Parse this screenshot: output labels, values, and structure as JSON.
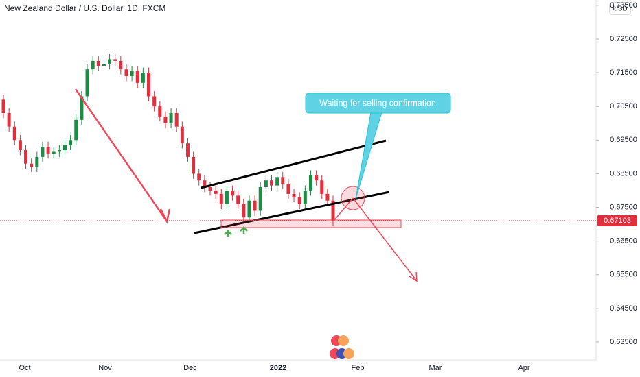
{
  "chart_data": {
    "type": "candlestick",
    "title": "New Zealand Dollar / U.S. Dollar, 1D, FXCM",
    "currency": "USD",
    "annotation": "Waiting for selling confirmation",
    "last_price": {
      "value": 0.67103,
      "label": "0.67103"
    },
    "up_color": "#1e8c45",
    "down_color": "#e0303e",
    "ylim": [
      0.6297,
      0.7366
    ],
    "yticks": [
      {
        "value": 0.635,
        "label": "0.63500"
      },
      {
        "value": 0.645,
        "label": "0.64500"
      },
      {
        "value": 0.655,
        "label": "0.65500"
      },
      {
        "value": 0.665,
        "label": "0.66500"
      },
      {
        "value": 0.675,
        "label": "0.67500"
      },
      {
        "value": 0.685,
        "label": "0.68500"
      },
      {
        "value": 0.695,
        "label": "0.69500"
      },
      {
        "value": 0.705,
        "label": "0.70500"
      },
      {
        "value": 0.715,
        "label": "0.71500"
      },
      {
        "value": 0.725,
        "label": "0.72500"
      },
      {
        "value": 0.735,
        "label": "0.73500"
      }
    ],
    "xtick_labels": [
      "Oct",
      "Nov",
      "Dec",
      "2022",
      "Feb",
      "Mar",
      "Apr"
    ],
    "open": [
      0.707,
      0.703,
      0.699,
      0.695,
      0.692,
      0.688,
      0.687,
      0.69,
      0.693,
      0.691,
      0.6915,
      0.692,
      0.6935,
      0.695,
      0.701,
      0.708,
      0.716,
      0.7185,
      0.717,
      0.7175,
      0.719,
      0.7185,
      0.716,
      0.714,
      0.7155,
      0.712,
      0.715,
      0.708,
      0.705,
      0.702,
      0.7,
      0.703,
      0.699,
      0.694,
      0.69,
      0.685,
      0.683,
      0.681,
      0.68,
      0.679,
      0.676,
      0.68,
      0.6785,
      0.676,
      0.672,
      0.677,
      0.674,
      0.681,
      0.683,
      0.6815,
      0.684,
      0.682,
      0.679,
      0.678,
      0.676,
      0.68,
      0.6845,
      0.683,
      0.679,
      0.677
    ],
    "high": [
      0.7085,
      0.7045,
      0.7005,
      0.6965,
      0.6935,
      0.6895,
      0.6915,
      0.6945,
      0.6945,
      0.693,
      0.6935,
      0.695,
      0.6965,
      0.7025,
      0.7095,
      0.7175,
      0.72,
      0.72,
      0.719,
      0.7205,
      0.7205,
      0.72,
      0.7175,
      0.717,
      0.717,
      0.7165,
      0.7165,
      0.7095,
      0.7065,
      0.7035,
      0.7045,
      0.7045,
      0.7005,
      0.6955,
      0.6915,
      0.6865,
      0.6845,
      0.6825,
      0.6815,
      0.6805,
      0.6815,
      0.6815,
      0.68,
      0.6775,
      0.6785,
      0.6785,
      0.6825,
      0.6845,
      0.6845,
      0.6855,
      0.6855,
      0.6835,
      0.6805,
      0.6795,
      0.6815,
      0.686,
      0.686,
      0.6845,
      0.6805,
      0.6785
    ],
    "low": [
      0.7015,
      0.6975,
      0.6935,
      0.6905,
      0.6865,
      0.6855,
      0.6855,
      0.6885,
      0.6895,
      0.6895,
      0.69,
      0.6905,
      0.692,
      0.6935,
      0.6995,
      0.7065,
      0.7145,
      0.7155,
      0.7155,
      0.716,
      0.717,
      0.7145,
      0.7125,
      0.7125,
      0.7105,
      0.7105,
      0.7065,
      0.7035,
      0.7005,
      0.6985,
      0.6985,
      0.6975,
      0.6925,
      0.6885,
      0.6835,
      0.6815,
      0.6795,
      0.6785,
      0.6775,
      0.6745,
      0.6745,
      0.677,
      0.6745,
      0.6705,
      0.6705,
      0.6725,
      0.6725,
      0.6795,
      0.68,
      0.68,
      0.6805,
      0.6775,
      0.6765,
      0.6745,
      0.6745,
      0.6785,
      0.6815,
      0.6775,
      0.6755,
      0.6695
    ],
    "close": [
      0.703,
      0.699,
      0.695,
      0.692,
      0.688,
      0.687,
      0.69,
      0.693,
      0.691,
      0.6915,
      0.692,
      0.6935,
      0.695,
      0.701,
      0.708,
      0.716,
      0.7185,
      0.717,
      0.7175,
      0.719,
      0.7185,
      0.716,
      0.714,
      0.7155,
      0.712,
      0.715,
      0.708,
      0.705,
      0.702,
      0.7,
      0.703,
      0.699,
      0.694,
      0.69,
      0.685,
      0.683,
      0.681,
      0.68,
      0.679,
      0.676,
      0.68,
      0.6785,
      0.676,
      0.672,
      0.677,
      0.674,
      0.681,
      0.683,
      0.6815,
      0.684,
      0.682,
      0.679,
      0.678,
      0.676,
      0.68,
      0.6845,
      0.683,
      0.679,
      0.677,
      0.671
    ]
  }
}
